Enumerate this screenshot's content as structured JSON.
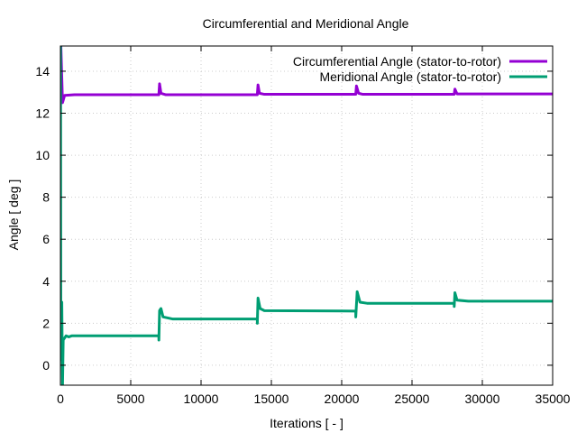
{
  "chart_data": {
    "type": "line",
    "title": "Circumferential and Meridional Angle",
    "xlabel": "Iterations [ - ]",
    "ylabel": "Angle [ deg ]",
    "xlim": [
      0,
      35000
    ],
    "ylim": [
      -0.95,
      15.2
    ],
    "xticks": [
      0,
      5000,
      10000,
      15000,
      20000,
      25000,
      30000,
      35000
    ],
    "yticks": [
      0,
      2,
      4,
      6,
      8,
      10,
      12,
      14
    ],
    "grid": true,
    "legend": "top-right",
    "series": [
      {
        "name": "Circumferential Angle (stator-to-rotor)",
        "color": "#9400d3",
        "x": [
          0,
          150,
          300,
          1000,
          7000,
          7050,
          7150,
          7500,
          14000,
          14050,
          14150,
          14500,
          21000,
          21050,
          21200,
          21500,
          28000,
          28050,
          28200,
          35000
        ],
        "y": [
          16,
          12.5,
          12.85,
          12.88,
          12.88,
          13.4,
          12.95,
          12.88,
          12.88,
          13.35,
          12.95,
          12.9,
          12.9,
          13.3,
          12.95,
          12.9,
          12.9,
          13.15,
          12.92,
          12.92
        ]
      },
      {
        "name": "Meridional Angle (stator-to-rotor)",
        "color": "#009e73",
        "x": [
          0,
          10,
          30,
          100,
          150,
          200,
          400,
          600,
          800,
          7000,
          7001,
          7050,
          7150,
          7300,
          8000,
          14000,
          14001,
          14050,
          14200,
          14500,
          21000,
          21001,
          21100,
          21300,
          21800,
          28000,
          28001,
          28050,
          28200,
          29000,
          35000
        ],
        "y": [
          0.2,
          15.2,
          1.0,
          3.0,
          -1,
          1.2,
          1.4,
          1.35,
          1.4,
          1.4,
          1.2,
          2.6,
          2.7,
          2.3,
          2.2,
          2.2,
          2.0,
          3.2,
          2.7,
          2.6,
          2.58,
          2.3,
          3.5,
          3.0,
          2.95,
          2.95,
          2.8,
          3.45,
          3.1,
          3.05,
          3.05
        ]
      }
    ]
  }
}
